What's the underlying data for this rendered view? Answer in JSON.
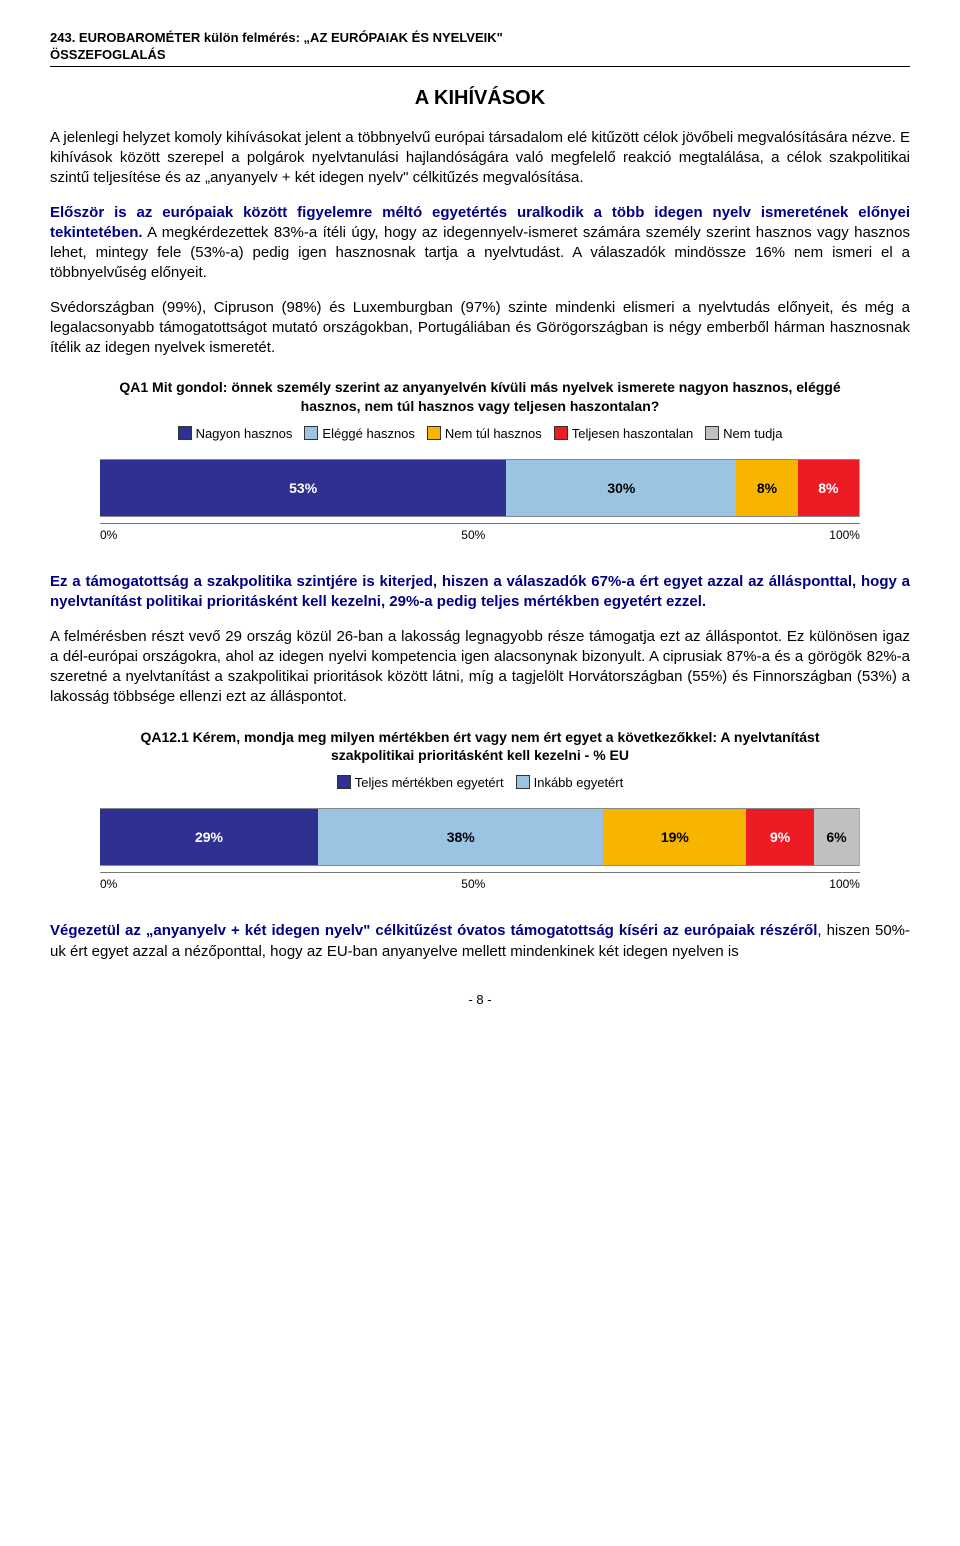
{
  "header": {
    "line1": "243. EUROBAROMÉTER külön felmérés: „AZ EURÓPAIAK ÉS NYELVEIK\"",
    "line2": "ÖSSZEFOGLALÁS"
  },
  "title": "A KIHÍVÁSOK",
  "para1": "A jelenlegi helyzet komoly kihívásokat jelent a többnyelvű európai társadalom elé kitűzött célok jövőbeli megvalósítására nézve. E kihívások között szerepel a polgárok nyelvtanulási hajlandóságára való megfelelő reakció megtalálása, a célok szakpolitikai szintű teljesítése és az „anyanyelv + két idegen nyelv\" célkitűzés megvalósítása.",
  "para2_bold": "Először is az európaiak között figyelemre méltó egyetértés uralkodik a több idegen nyelv ismeretének előnyei tekintetében.",
  "para2_rest": " A megkérdezettek 83%-a ítéli úgy, hogy az idegennyelv-ismeret számára személy szerint hasznos vagy hasznos lehet, mintegy fele (53%-a) pedig igen hasznosnak tartja a nyelvtudást. A válaszadók mindössze 16% nem ismeri el a többnyelvűség előnyeit.",
  "para3": "Svédországban (99%), Cipruson (98%) és Luxemburgban (97%) szinte mindenki elismeri a nyelvtudás előnyeit, és még a legalacsonyabb támogatottságot mutató országokban, Portugáliában és Görögországban is négy emberből hárman hasznosnak ítélik az idegen nyelvek ismeretét.",
  "chart1": {
    "title": "QA1  Mit gondol: önnek személy szerint az anyanyelvén kívüli más nyelvek ismerete nagyon hasznos, eléggé hasznos, nem túl hasznos vagy teljesen haszontalan?",
    "legend": [
      {
        "label": "Nagyon hasznos",
        "color": "#2e3192"
      },
      {
        "label": "Eléggé hasznos",
        "color": "#9bc4e2"
      },
      {
        "label": "Nem túl hasznos",
        "color": "#f7b500"
      },
      {
        "label": "Teljesen haszontalan",
        "color": "#ed1c24"
      },
      {
        "label": "Nem tudja",
        "color": "#c0c0c0"
      }
    ],
    "segments": [
      {
        "value": 53,
        "label": "53%",
        "color": "#2e3192",
        "text": "dark"
      },
      {
        "value": 30,
        "label": "30%",
        "color": "#9bc4e2",
        "text": "light"
      },
      {
        "value": 8,
        "label": "8%",
        "color": "#f7b500",
        "text": "light"
      },
      {
        "value": 8,
        "label": "8%",
        "color": "#ed1c24",
        "text": "dark"
      }
    ],
    "axis": [
      "0%",
      "50%",
      "100%"
    ]
  },
  "para4_bold": "Ez a támogatottság a szakpolitika szintjére is kiterjed, hiszen a válaszadók 67%-a ért egyet azzal az állásponttal, hogy a nyelvtanítást politikai prioritásként kell kezelni, 29%-a pedig teljes mértékben egyetért ezzel.",
  "para5": "A felmérésben részt vevő 29 ország közül 26-ban a lakosság legnagyobb része támogatja ezt az álláspontot. Ez különösen igaz a dél-európai országokra, ahol az idegen nyelvi kompetencia igen alacsonynak bizonyult. A ciprusiak 87%-a és a görögök 82%-a szeretné a nyelvtanítást a szakpolitikai prioritások között látni, míg a tagjelölt Horvátországban (55%) és Finnországban (53%) a lakosság többsége ellenzi ezt az álláspontot.",
  "chart2": {
    "title": "QA12.1 Kérem, mondja meg milyen mértékben ért vagy nem ért egyet a következőkkel: A nyelvtanítást szakpolitikai prioritásként kell kezelni - % EU",
    "legend": [
      {
        "label": "Teljes mértékben egyetért",
        "color": "#2e3192"
      },
      {
        "label": "Inkább egyetért",
        "color": "#9bc4e2"
      }
    ],
    "segments": [
      {
        "value": 29,
        "label": "29%",
        "color": "#2e3192",
        "text": "dark"
      },
      {
        "value": 38,
        "label": "38%",
        "color": "#9bc4e2",
        "text": "light"
      },
      {
        "value": 19,
        "label": "19%",
        "color": "#f7b500",
        "text": "light"
      },
      {
        "value": 9,
        "label": "9%",
        "color": "#ed1c24",
        "text": "dark"
      },
      {
        "value": 6,
        "label": "6%",
        "color": "#c0c0c0",
        "text": "light"
      }
    ],
    "axis": [
      "0%",
      "50%",
      "100%"
    ]
  },
  "para6_bold": "Végezetül az „anyanyelv + két idegen nyelv\" célkitűzést óvatos támogatottság kíséri az európaiak részéről",
  "para6_rest": ", hiszen 50%-uk ért egyet azzal a nézőponttal, hogy az EU-ban anyanyelve mellett mindenkinek két idegen nyelven is",
  "footer": "- 8 -"
}
